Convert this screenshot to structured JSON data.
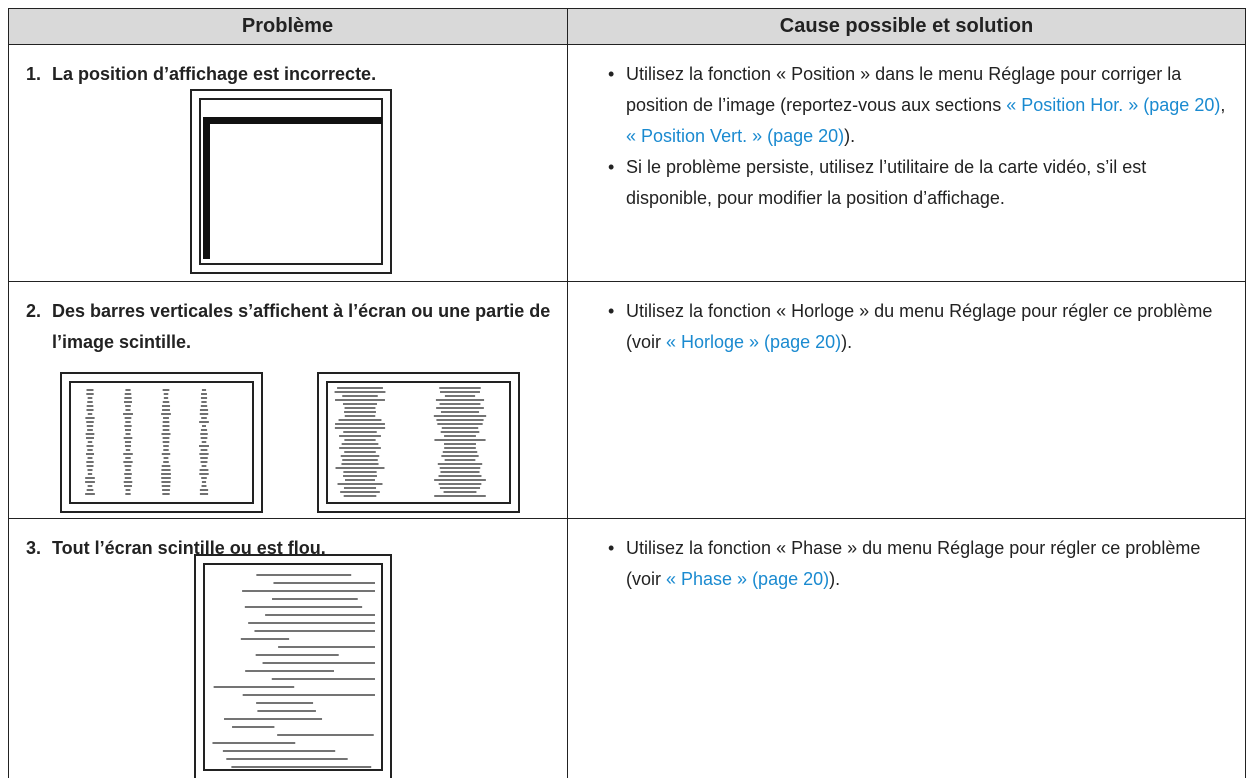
{
  "table": {
    "header": [
      "Problème",
      "Cause possible et solution"
    ],
    "rows": [
      {
        "number": "1.",
        "problem": "La position d’affichage est incorrecte.",
        "solution": [
          [
            {
              "text": "Utilisez la fonction « Position » dans le menu Réglage pour corriger la position de l’image (reportez-vous aux sections "
            },
            {
              "text": "« Position Hor. » (page 20)",
              "link": true
            },
            {
              "text": ", "
            },
            {
              "text": "« Position Vert. » (page 20)",
              "link": true
            },
            {
              "text": ")."
            }
          ],
          [
            {
              "text": "Si le problème persiste, utilisez l’utilitaire de la carte vidéo, s’il est disponible, pour modifier la position d’affichage."
            }
          ]
        ]
      },
      {
        "number": "2.",
        "problem": "Des barres verticales s’affichent à l’écran ou une partie de l’image scintille.",
        "solution": [
          [
            {
              "text": "Utilisez la fonction « Horloge » du menu Réglage pour régler ce problème (voir "
            },
            {
              "text": "« Horloge » (page 20)",
              "link": true
            },
            {
              "text": ")."
            }
          ]
        ]
      },
      {
        "number": "3.",
        "problem": "Tout l’écran scintille ou est flou.",
        "solution": [
          [
            {
              "text": "Utilisez la fonction « Phase » du menu Réglage pour régler ce problème (voir "
            },
            {
              "text": "« Phase » (page 20)",
              "link": true
            },
            {
              "text": ")."
            }
          ]
        ]
      }
    ]
  }
}
